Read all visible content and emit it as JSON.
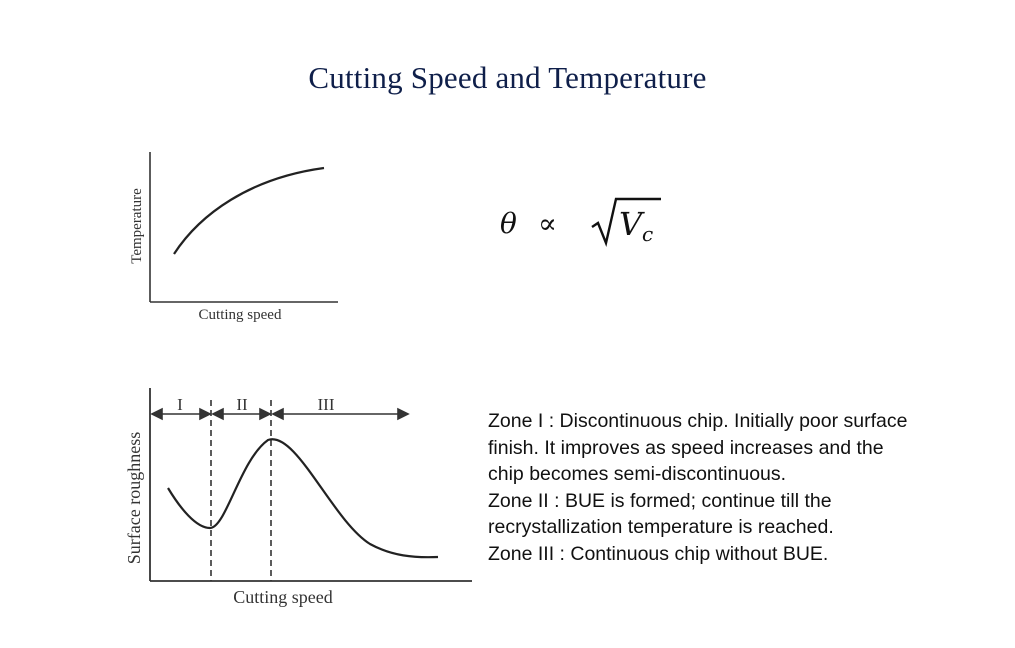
{
  "page": {
    "title": "Cutting Speed and Temperature"
  },
  "temperature_chart": {
    "xlabel": "Cutting speed",
    "ylabel": "Temperature"
  },
  "formula": {
    "lhs": "θ",
    "relation": "∝",
    "radicand": "V",
    "subscript": "c"
  },
  "roughness_chart": {
    "xlabel": "Cutting speed",
    "ylabel": "Surface roughness",
    "zones": [
      "I",
      "II",
      "III"
    ]
  },
  "zone_descriptions": [
    "Zone I : Discontinuous chip. Initially poor surface finish. It improves as speed increases and the chip becomes semi-discontinuous.",
    "Zone II : BUE is formed; continue till the recrystallization temperature is reached.",
    "Zone III : Continuous chip without BUE."
  ]
}
